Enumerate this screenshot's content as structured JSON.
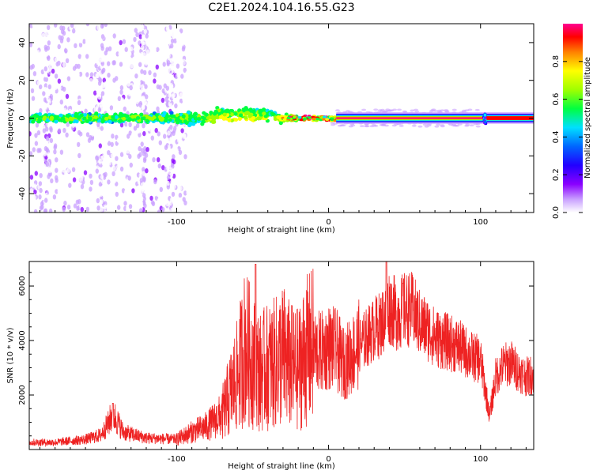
{
  "title": "C2E1.2024.104.16.55.G23",
  "colors": {
    "snr_line": "#ee2222",
    "background": "#ffffff",
    "colormap": [
      "#ffffff",
      "#c9a0ff",
      "#8a00ff",
      "#2200ff",
      "#0066ff",
      "#00e0ff",
      "#00ff40",
      "#a0ff00",
      "#ffff00",
      "#ff8000",
      "#ff0000",
      "#ff0090"
    ]
  },
  "chart_data": [
    {
      "type": "heatmap",
      "title": "C2E1.2024.104.16.55.G23",
      "xlabel": "Height of straight line (km)",
      "ylabel": "Frequency (Hz)",
      "xlim": [
        -197,
        135
      ],
      "ylim": [
        -50,
        50
      ],
      "xticks": [
        -100,
        0,
        100
      ],
      "yticks": [
        -40,
        -20,
        0,
        20,
        40
      ],
      "colorbar": {
        "label": "Normalized spectral amplitude",
        "range": [
          0,
          1
        ],
        "ticks": [
          "0.0",
          "0.2",
          "0.4",
          "0.6",
          "0.8"
        ]
      },
      "features": {
        "center_frequency_hz": 0,
        "strong_signal_from_km": -30,
        "broadband_noise_until_km": -98,
        "spike_at_km": 103
      }
    },
    {
      "type": "line",
      "xlabel": "Height of straight line (km)",
      "ylabel": "SNR (10 * v/v)",
      "xlim": [
        -197,
        135
      ],
      "ylim": [
        0,
        6900
      ],
      "xticks": [
        -100,
        0,
        100
      ],
      "yticks": [
        2000,
        4000,
        6000
      ],
      "series": [
        {
          "x": [
            -197,
            -180,
            -160,
            -150,
            -145,
            -142,
            -135,
            -120,
            -100,
            -90,
            -80,
            -70,
            -60,
            -55,
            -50,
            -45,
            -40,
            -35,
            -30,
            -25,
            -20,
            -15,
            -10,
            -5,
            0,
            5,
            10,
            15,
            20,
            25,
            30,
            35,
            40,
            45,
            50,
            55,
            60,
            65,
            70,
            75,
            80,
            85,
            90,
            95,
            100,
            103,
            106,
            110,
            115,
            120,
            125,
            130,
            135
          ],
          "y": [
            250,
            250,
            350,
            500,
            900,
            1250,
            600,
            400,
            350,
            600,
            800,
            1200,
            2500,
            3500,
            3000,
            2600,
            2800,
            2900,
            3200,
            2800,
            2700,
            3300,
            3500,
            3400,
            3600,
            3500,
            3000,
            3300,
            3700,
            4000,
            4300,
            4500,
            5100,
            4800,
            5000,
            5000,
            4500,
            4300,
            4000,
            3900,
            3800,
            3700,
            3500,
            3300,
            3200,
            2200,
            1200,
            2600,
            3000,
            3100,
            2800,
            2600,
            2700
          ]
        }
      ],
      "peaks": [
        {
          "x": -48,
          "y": 6800
        },
        {
          "x": 38,
          "y": 6900
        },
        {
          "x": 49,
          "y": 6100
        },
        {
          "x": -142,
          "y": 1700
        }
      ]
    }
  ]
}
